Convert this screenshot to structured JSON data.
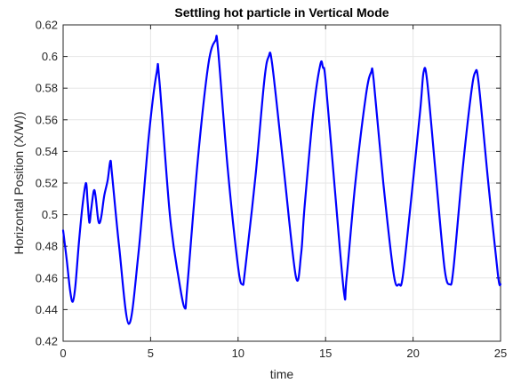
{
  "chart_data": {
    "type": "line",
    "title": "Settling hot particle in Vertical Mode",
    "xlabel": "time",
    "ylabel": "Horizontal Position (X/W))",
    "xlim": [
      0,
      25
    ],
    "ylim": [
      0.42,
      0.62
    ],
    "xticks": [
      0,
      5,
      10,
      15,
      20,
      25
    ],
    "xtick_labels": [
      "0",
      "5",
      "10",
      "15",
      "20",
      "25"
    ],
    "yticks": [
      0.42,
      0.44,
      0.46,
      0.48,
      0.5,
      0.52,
      0.54,
      0.56,
      0.58,
      0.6,
      0.62
    ],
    "ytick_labels": [
      "0.42",
      "0.44",
      "0.46",
      "0.48",
      "0.5",
      "0.52",
      "0.54",
      "0.56",
      "0.58",
      "0.6",
      "0.62"
    ],
    "grid": true,
    "series": [
      {
        "color": "#0000ff",
        "x": [
          0,
          0.2,
          0.4,
          0.55,
          0.7,
          0.9,
          1.1,
          1.3,
          1.4,
          1.5,
          1.6,
          1.75,
          1.85,
          2.0,
          2.1,
          2.2,
          2.35,
          2.55,
          2.7,
          2.8,
          3.2,
          3.75,
          4.3,
          4.9,
          5.35,
          5.5,
          6.1,
          6.6,
          6.95,
          7.1,
          7.7,
          8.3,
          8.7,
          8.85,
          9.4,
          10.0,
          10.25,
          10.4,
          11.0,
          11.5,
          11.75,
          11.95,
          12.6,
          13.3,
          13.6,
          13.8,
          14.3,
          14.7,
          14.85,
          15.0,
          15.5,
          16.05,
          16.2,
          16.7,
          17.3,
          17.6,
          17.75,
          18.3,
          18.9,
          19.2,
          19.4,
          19.8,
          20.4,
          20.6,
          20.8,
          21.3,
          21.8,
          22.1,
          22.3,
          22.8,
          23.3,
          23.55,
          23.75,
          24.3,
          24.85,
          25.0
        ],
        "y": [
          0.49,
          0.472,
          0.452,
          0.445,
          0.455,
          0.482,
          0.505,
          0.52,
          0.508,
          0.495,
          0.503,
          0.515,
          0.512,
          0.497,
          0.495,
          0.5,
          0.512,
          0.522,
          0.534,
          0.525,
          0.48,
          0.431,
          0.475,
          0.55,
          0.59,
          0.585,
          0.5,
          0.46,
          0.441,
          0.455,
          0.535,
          0.595,
          0.61,
          0.605,
          0.53,
          0.467,
          0.456,
          0.465,
          0.525,
          0.585,
          0.6,
          0.595,
          0.53,
          0.461,
          0.475,
          0.505,
          0.565,
          0.595,
          0.593,
          0.585,
          0.52,
          0.451,
          0.46,
          0.52,
          0.575,
          0.59,
          0.585,
          0.52,
          0.462,
          0.456,
          0.46,
          0.5,
          0.565,
          0.59,
          0.585,
          0.525,
          0.466,
          0.456,
          0.465,
          0.525,
          0.575,
          0.59,
          0.583,
          0.52,
          0.462,
          0.456
        ]
      }
    ]
  }
}
